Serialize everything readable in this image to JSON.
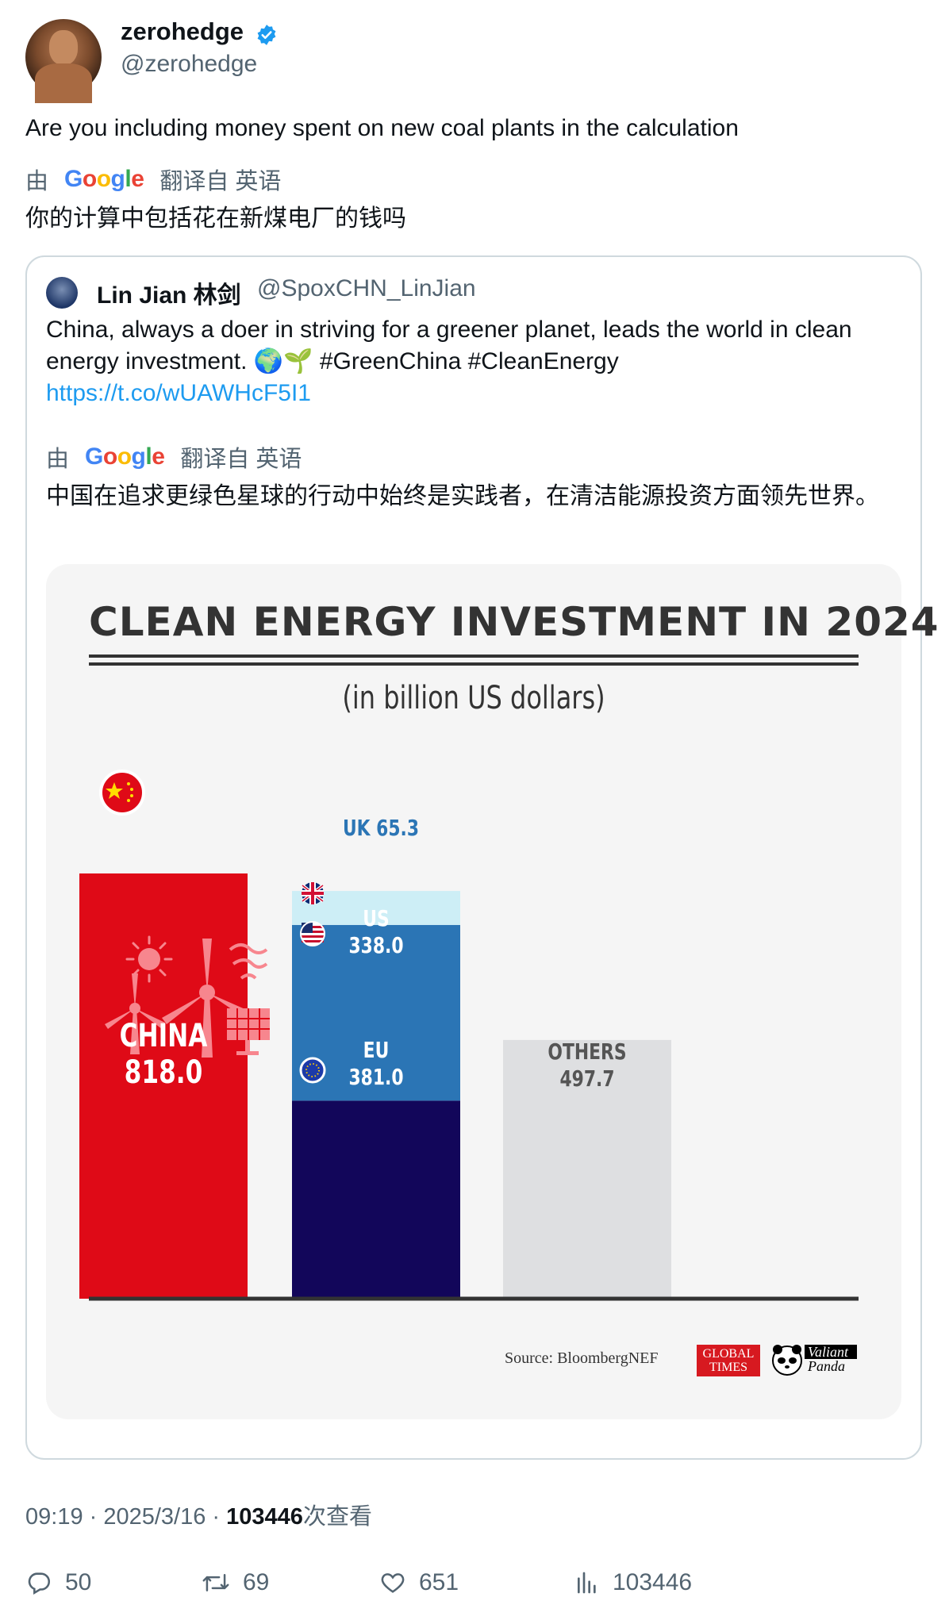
{
  "author": {
    "display_name": "zerohedge",
    "handle": "@zerohedge",
    "verified": true
  },
  "tweet": {
    "text": "Are you including money spent on new coal plants in the calculation",
    "translate_prefix": "由",
    "translate_provider": "Google",
    "translate_suffix": "翻译自 英语",
    "translated_text": "你的计算中包括花在新煤电厂的钱吗"
  },
  "quoted": {
    "display_name": "Lin Jian 林剑",
    "handle": "@SpoxCHN_LinJian",
    "text": "China, always a doer in striving for a greener planet, leads the world in clean energy investment. 🌍🌱 #GreenChina #CleanEnergy",
    "link": "https://t.co/wUAWHcF5I1",
    "translate_prefix": "由",
    "translate_provider": "Google",
    "translate_suffix": "翻译自 英语",
    "translated_text": "中国在追求更绿色星球的行动中始终是实践者，在清洁能源投资方面领先世界。"
  },
  "chart_data": {
    "type": "bar",
    "title": "CLEAN ENERGY INVESTMENT IN 2024",
    "subtitle": "(in billion US dollars)",
    "source": "Source: BloombergNEF",
    "logos": {
      "global_times": "GLOBAL TIMES",
      "valiant_panda": "Valiant Panda"
    },
    "bars": [
      {
        "label": "CHINA",
        "value": 818.0,
        "display": "818.0",
        "color": "#df0a17"
      },
      {
        "label": "EU",
        "value": 381.0,
        "display": "381.0",
        "color": "#12065a"
      },
      {
        "label": "US",
        "value": 338.0,
        "display": "338.0",
        "color": "#2b75b5"
      },
      {
        "label": "UK",
        "value": 65.3,
        "display": "65.3",
        "color": "#cdeef6"
      },
      {
        "label": "OTHERS",
        "value": 497.7,
        "display": "497.7",
        "color": "#dedfe1"
      }
    ],
    "stacked_group": [
      "EU",
      "US",
      "UK"
    ]
  },
  "meta": {
    "time": "09:19",
    "date": "2025/3/16",
    "views": "103446",
    "views_suffix": "次查看"
  },
  "actions": {
    "replies": "50",
    "retweets": "69",
    "likes": "651",
    "views": "103446"
  },
  "colors": {
    "link": "#1d9bf0",
    "verified": "#1d9bf0",
    "muted": "#536471"
  }
}
